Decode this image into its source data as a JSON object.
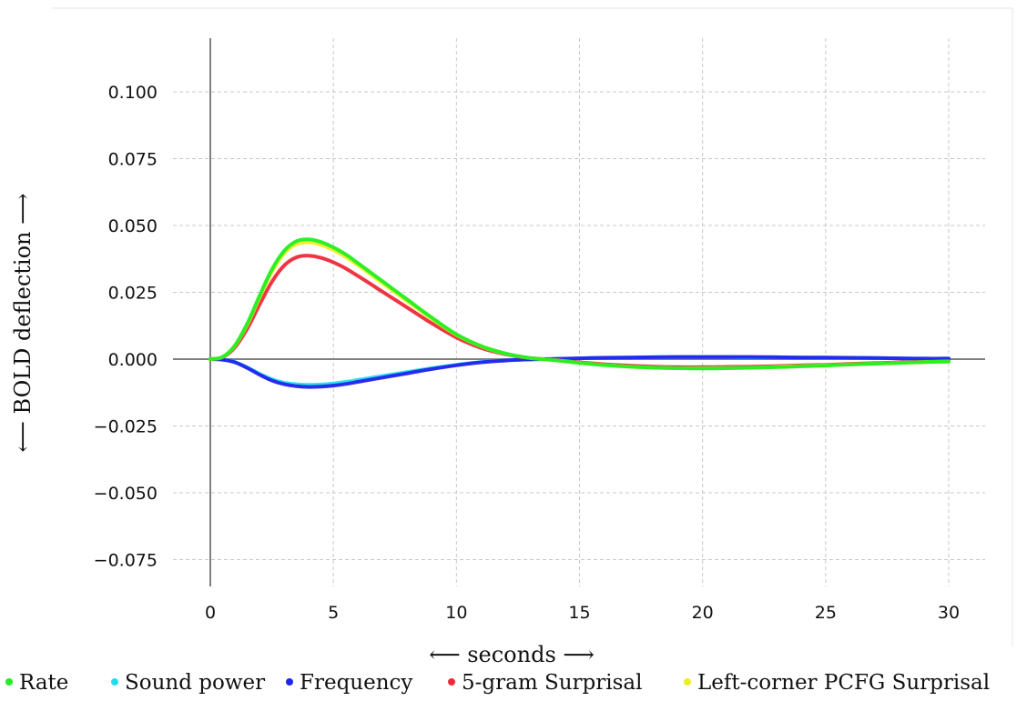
{
  "chart_data": {
    "type": "line",
    "xlabel": "⟵ seconds ⟶",
    "ylabel": "⟵ BOLD deflection ⟶",
    "xlim": [
      0,
      30
    ],
    "ylim": [
      -0.085,
      0.12
    ],
    "xticks": [
      0,
      5,
      10,
      15,
      20,
      25,
      30
    ],
    "xtick_labels": [
      "0",
      "5",
      "10",
      "15",
      "20",
      "25",
      "30"
    ],
    "yticks": [
      -0.075,
      -0.05,
      -0.025,
      0.0,
      0.025,
      0.05,
      0.075,
      0.1
    ],
    "ytick_labels": [
      "−0.075",
      "−0.050",
      "−0.025",
      "0.000",
      "0.025",
      "0.050",
      "0.075",
      "0.100"
    ],
    "grid": true,
    "legend_position": "bottom",
    "x": [
      0,
      0.5,
      1,
      1.5,
      2,
      2.5,
      3,
      3.5,
      4,
      4.5,
      5,
      5.5,
      6,
      7,
      8,
      9,
      10,
      11,
      12,
      13,
      14,
      15,
      16,
      17,
      18,
      19,
      20,
      21,
      22,
      23,
      24,
      25,
      26,
      27,
      28,
      29,
      30
    ],
    "series": [
      {
        "name": "Rate",
        "color": "#22ee22",
        "values": [
          0,
          0.0008,
          0.0051,
          0.0133,
          0.0237,
          0.0335,
          0.0405,
          0.0441,
          0.0448,
          0.0438,
          0.0418,
          0.0392,
          0.0359,
          0.0291,
          0.0223,
          0.0155,
          0.0093,
          0.0049,
          0.0021,
          0.0004,
          -0.0004,
          -0.0014,
          -0.0022,
          -0.0028,
          -0.0032,
          -0.0034,
          -0.0035,
          -0.0034,
          -0.0032,
          -0.003,
          -0.0027,
          -0.0024,
          -0.002,
          -0.0017,
          -0.0014,
          -0.0011,
          -0.0009
        ]
      },
      {
        "name": "Sound power",
        "color": "#22dded",
        "values": [
          0,
          -0.0002,
          -0.0011,
          -0.0031,
          -0.0055,
          -0.0075,
          -0.0088,
          -0.0094,
          -0.0096,
          -0.0095,
          -0.0091,
          -0.0085,
          -0.0078,
          -0.0063,
          -0.0048,
          -0.0034,
          -0.0021,
          -0.0011,
          -0.0005,
          -0.0001,
          0.0001,
          0.0003,
          0.0005,
          0.0006,
          0.0007,
          0.0008,
          0.0008,
          0.0008,
          0.0007,
          0.0007,
          0.0006,
          0.0005,
          0.0004,
          0.0004,
          0.0003,
          0.0002,
          0.0002
        ]
      },
      {
        "name": "Frequency",
        "color": "#2222ee",
        "values": [
          0,
          -0.0002,
          -0.0012,
          -0.0033,
          -0.0058,
          -0.008,
          -0.0094,
          -0.0101,
          -0.0104,
          -0.0103,
          -0.0099,
          -0.0093,
          -0.0085,
          -0.0069,
          -0.0053,
          -0.0037,
          -0.0023,
          -0.0012,
          -0.0005,
          -0.0001,
          0.0001,
          0.0003,
          0.0005,
          0.0006,
          0.0007,
          0.0008,
          0.0008,
          0.0008,
          0.0008,
          0.0007,
          0.0006,
          0.0006,
          0.0005,
          0.0004,
          0.0003,
          0.0002,
          0.0002
        ]
      },
      {
        "name": "5-gram Surprisal",
        "color": "#ee2a3a",
        "values": [
          0,
          0.0007,
          0.0044,
          0.0114,
          0.0204,
          0.0289,
          0.035,
          0.0381,
          0.0387,
          0.0379,
          0.0362,
          0.0339,
          0.0311,
          0.0252,
          0.0193,
          0.0134,
          0.0081,
          0.0042,
          0.0018,
          0.0004,
          -0.0003,
          -0.0012,
          -0.0019,
          -0.0024,
          -0.0028,
          -0.003,
          -0.003,
          -0.0029,
          -0.0028,
          -0.0026,
          -0.0023,
          -0.0021,
          -0.0018,
          -0.0015,
          -0.0012,
          -0.001,
          -0.0008
        ]
      },
      {
        "name": "Left-corner PCFG Surprisal",
        "color": "#eeee22",
        "values": [
          0,
          0.0008,
          0.005,
          0.0129,
          0.0231,
          0.0326,
          0.0395,
          0.043,
          0.0437,
          0.0428,
          0.0408,
          0.0382,
          0.0351,
          0.0284,
          0.0217,
          0.0151,
          0.0091,
          0.0048,
          0.002,
          0.0004,
          -0.0004,
          -0.0014,
          -0.0022,
          -0.0028,
          -0.0032,
          -0.0034,
          -0.0034,
          -0.0033,
          -0.0032,
          -0.0029,
          -0.0026,
          -0.0023,
          -0.002,
          -0.0017,
          -0.0014,
          -0.0011,
          -0.0009
        ]
      }
    ]
  }
}
